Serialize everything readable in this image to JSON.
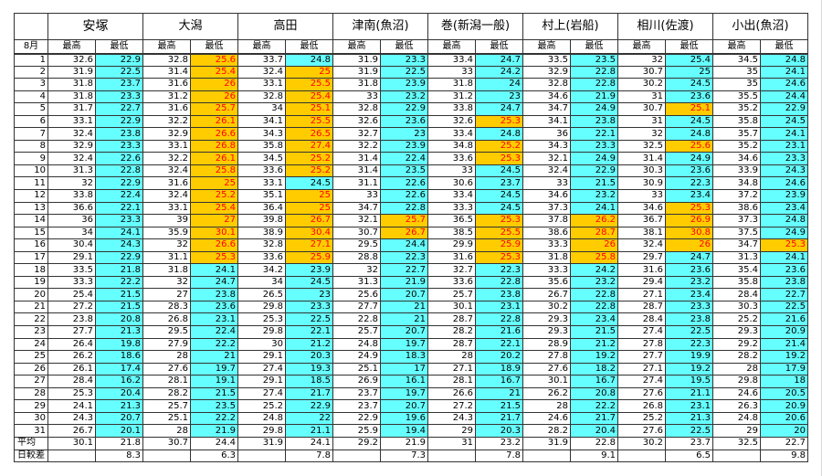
{
  "sheet": {
    "month_label": "8月",
    "sub_headers": {
      "high": "最高",
      "low": "最低"
    },
    "colors": {
      "cyan": "#66ffff",
      "hot_bg": "#ffcc00",
      "hot_text": "#ff0000"
    },
    "stations": [
      {
        "name": "安塚",
        "main": true
      },
      {
        "name": "大潟"
      },
      {
        "name": "高田"
      },
      {
        "name": "津南(魚沼)"
      },
      {
        "name": "巻(新潟一般)"
      },
      {
        "name": "村上(岩船)"
      },
      {
        "name": "相川(佐渡)"
      },
      {
        "name": "小出(魚沼)"
      }
    ],
    "rows": [
      {
        "day": "1",
        "v": [
          "32.6",
          "22.9",
          "32.8",
          "25.6",
          "33.7",
          "24.8",
          "31.9",
          "23.3",
          "33.4",
          "24.7",
          "33.5",
          "23.5",
          "32",
          "25.4",
          "34.5",
          "24.8"
        ],
        "hot": [
          3
        ]
      },
      {
        "day": "2",
        "v": [
          "31.9",
          "22.5",
          "31.4",
          "25.4",
          "32.4",
          "25",
          "31.9",
          "22.5",
          "33",
          "24.2",
          "32.9",
          "22.8",
          "30.7",
          "25",
          "35",
          "24.1"
        ],
        "hot": [
          3,
          5
        ]
      },
      {
        "day": "3",
        "v": [
          "31.8",
          "23.7",
          "31.6",
          "26",
          "33.1",
          "25.5",
          "31.8",
          "23.9",
          "31.8",
          "24",
          "32.8",
          "22.8",
          "30.2",
          "24.5",
          "35",
          "24.6"
        ],
        "hot": [
          3,
          5
        ]
      },
      {
        "day": "4",
        "v": [
          "31.8",
          "23.3",
          "31.2",
          "26",
          "32.8",
          "25.4",
          "33",
          "23.2",
          "31.2",
          "23",
          "34.6",
          "21.9",
          "31",
          "23.6",
          "35.5",
          "24.4"
        ],
        "hot": [
          3,
          5
        ]
      },
      {
        "day": "5",
        "v": [
          "31.7",
          "22.7",
          "31.6",
          "25.7",
          "34",
          "25.1",
          "32.8",
          "22.9",
          "33.8",
          "24.7",
          "34.7",
          "24.9",
          "30.7",
          "25.1",
          "35.2",
          "22.9"
        ],
        "hot": [
          3,
          5,
          13
        ]
      },
      {
        "day": "6",
        "v": [
          "33.1",
          "22.9",
          "32.2",
          "26.1",
          "34.1",
          "25.5",
          "32.6",
          "23.6",
          "32.6",
          "25.3",
          "34.1",
          "23.8",
          "31",
          "24.5",
          "35.8",
          "24.5"
        ],
        "hot": [
          3,
          5,
          9
        ]
      },
      {
        "day": "7",
        "v": [
          "32.4",
          "23.8",
          "32.9",
          "26.6",
          "34.3",
          "26.5",
          "32.7",
          "23",
          "33.4",
          "24.8",
          "36",
          "22.1",
          "32",
          "24.8",
          "35.7",
          "24.1"
        ],
        "hot": [
          3,
          5
        ]
      },
      {
        "day": "8",
        "v": [
          "32.9",
          "23.3",
          "33.1",
          "26.8",
          "35.8",
          "27.4",
          "32.2",
          "23.9",
          "34.8",
          "25.2",
          "34.3",
          "23.3",
          "32.5",
          "25.6",
          "35.2",
          "23.1"
        ],
        "hot": [
          3,
          5,
          9,
          13
        ]
      },
      {
        "day": "9",
        "v": [
          "32.4",
          "22.6",
          "32.2",
          "26.1",
          "34.5",
          "25.2",
          "31.4",
          "22.4",
          "33.6",
          "25.3",
          "32.1",
          "24.9",
          "31.4",
          "24.9",
          "34.6",
          "23.3"
        ],
        "hot": [
          3,
          5,
          9
        ]
      },
      {
        "day": "10",
        "v": [
          "31.3",
          "22.8",
          "32.4",
          "25.8",
          "33.6",
          "25.2",
          "31.4",
          "23.5",
          "33",
          "24.5",
          "32.4",
          "22.9",
          "30.3",
          "23.6",
          "33.9",
          "24.3"
        ],
        "hot": [
          3,
          5
        ]
      },
      {
        "day": "11",
        "v": [
          "32",
          "22.9",
          "31.6",
          "25",
          "33.1",
          "24.5",
          "31.1",
          "22.6",
          "30.6",
          "23.7",
          "33",
          "21.5",
          "30.9",
          "22.3",
          "34.8",
          "24.6"
        ],
        "hot": [
          3
        ]
      },
      {
        "day": "12",
        "v": [
          "33.8",
          "22.4",
          "32.4",
          "25.2",
          "35.1",
          "25",
          "33",
          "22.6",
          "33.4",
          "24.5",
          "34.6",
          "23.2",
          "33",
          "23.4",
          "37.2",
          "23.9"
        ],
        "hot": [
          3,
          5
        ]
      },
      {
        "day": "13",
        "v": [
          "36.6",
          "22.1",
          "33.1",
          "25.4",
          "36.4",
          "25",
          "34.7",
          "22.8",
          "33.3",
          "24.5",
          "37.3",
          "24.1",
          "34.6",
          "25.3",
          "38.6",
          "23.4"
        ],
        "hot": [
          3,
          5,
          13
        ]
      },
      {
        "day": "14",
        "v": [
          "36",
          "23.3",
          "39",
          "27",
          "39.8",
          "26.7",
          "32.1",
          "25.7",
          "36.5",
          "25.3",
          "37.8",
          "26.2",
          "36.7",
          "26.9",
          "37.3",
          "24.8"
        ],
        "hot": [
          3,
          5,
          7,
          9,
          11,
          13
        ]
      },
      {
        "day": "15",
        "v": [
          "34",
          "24.1",
          "35.9",
          "30.1",
          "38.9",
          "30.4",
          "30.7",
          "26.7",
          "38.5",
          "25.5",
          "38.6",
          "28.7",
          "38.1",
          "30.8",
          "37.5",
          "24.9"
        ],
        "hot": [
          3,
          5,
          7,
          9,
          11,
          13
        ]
      },
      {
        "day": "16",
        "v": [
          "30.4",
          "24.3",
          "32",
          "26.6",
          "32.8",
          "27.1",
          "29.5",
          "24.4",
          "29.9",
          "25.9",
          "33.3",
          "26",
          "32.4",
          "26",
          "34.7",
          "25.3"
        ],
        "hot": [
          3,
          5,
          9,
          11,
          13,
          15
        ]
      },
      {
        "day": "17",
        "v": [
          "29.1",
          "22.9",
          "31.1",
          "25.3",
          "33.6",
          "25.9",
          "28.8",
          "22.3",
          "31.6",
          "25.3",
          "31.8",
          "25.8",
          "29.7",
          "24.7",
          "31.3",
          "24.1"
        ],
        "hot": [
          3,
          5,
          9,
          11
        ]
      },
      {
        "day": "18",
        "v": [
          "33.5",
          "21.8",
          "31.8",
          "24.1",
          "34.2",
          "23.9",
          "32",
          "22.7",
          "32.7",
          "22.3",
          "33.3",
          "24.2",
          "31.6",
          "23.6",
          "35.4",
          "23.6"
        ],
        "hot": []
      },
      {
        "day": "19",
        "v": [
          "33.3",
          "22.2",
          "32",
          "24.7",
          "34",
          "24.5",
          "31.3",
          "21.9",
          "33.6",
          "22.8",
          "35.6",
          "23.2",
          "29.4",
          "23.2",
          "35.8",
          "23.8"
        ],
        "hot": []
      },
      {
        "day": "20",
        "v": [
          "25.4",
          "21.5",
          "27",
          "23.8",
          "26.5",
          "23",
          "25.6",
          "20.7",
          "25.7",
          "23.8",
          "26.7",
          "22.8",
          "27.1",
          "23.4",
          "28.4",
          "22.7"
        ],
        "hot": []
      },
      {
        "day": "21",
        "v": [
          "27.2",
          "21.5",
          "28.3",
          "23.6",
          "29.8",
          "23.3",
          "27.7",
          "21",
          "30.1",
          "23.1",
          "30.2",
          "22.8",
          "28.7",
          "23.3",
          "30.3",
          "22.5"
        ],
        "hot": []
      },
      {
        "day": "22",
        "v": [
          "23.8",
          "20.8",
          "26.8",
          "23.1",
          "25.3",
          "22.5",
          "22.8",
          "21",
          "28.7",
          "22.8",
          "29.3",
          "23.4",
          "28.4",
          "23.8",
          "25.2",
          "21.6"
        ],
        "hot": []
      },
      {
        "day": "23",
        "v": [
          "27.7",
          "21.3",
          "29.5",
          "22.4",
          "29.8",
          "22.1",
          "25.7",
          "20.7",
          "28.2",
          "21.6",
          "29.3",
          "21.5",
          "27.4",
          "22.5",
          "29.3",
          "20.9"
        ],
        "hot": []
      },
      {
        "day": "24",
        "v": [
          "26.4",
          "19.8",
          "27.9",
          "22.2",
          "30",
          "21.2",
          "24.8",
          "19.7",
          "28.7",
          "22.1",
          "28.9",
          "21.2",
          "27.8",
          "22.3",
          "29.2",
          "21.4"
        ],
        "hot": []
      },
      {
        "day": "25",
        "v": [
          "26.2",
          "18.6",
          "28",
          "21",
          "29.1",
          "20.3",
          "24.9",
          "18.3",
          "28",
          "20.2",
          "27.8",
          "19.2",
          "27.7",
          "19.9",
          "28.2",
          "19.2"
        ],
        "hot": []
      },
      {
        "day": "26",
        "v": [
          "26.1",
          "17.4",
          "27.6",
          "19.7",
          "27.4",
          "19.3",
          "25.1",
          "17",
          "27.1",
          "18.9",
          "27.6",
          "18.2",
          "27.1",
          "19.2",
          "28",
          "17.9"
        ],
        "hot": []
      },
      {
        "day": "27",
        "v": [
          "28.4",
          "16.2",
          "28.1",
          "19.1",
          "29.1",
          "18.5",
          "26.9",
          "16.1",
          "28.1",
          "16.7",
          "30.1",
          "16.7",
          "27.4",
          "19.5",
          "29.8",
          "18"
        ],
        "hot": []
      },
      {
        "day": "28",
        "v": [
          "25.3",
          "20.4",
          "28.2",
          "21.5",
          "27.4",
          "21.7",
          "23.7",
          "19.7",
          "26.6",
          "21",
          "26.2",
          "20.8",
          "27.6",
          "21.1",
          "24.6",
          "20.5"
        ],
        "hot": []
      },
      {
        "day": "29",
        "v": [
          "24.1",
          "21.3",
          "25.7",
          "23.5",
          "25.2",
          "22.9",
          "23.7",
          "20.7",
          "27.2",
          "21.5",
          "28",
          "22.2",
          "26.8",
          "23.1",
          "26.3",
          "20.9"
        ],
        "hot": []
      },
      {
        "day": "30",
        "v": [
          "24.3",
          "20.7",
          "25.1",
          "22.2",
          "24.8",
          "22",
          "22.9",
          "19.6",
          "24.3",
          "21.7",
          "24.6",
          "21.7",
          "25.2",
          "21.3",
          "24.8",
          "20.6"
        ],
        "hot": []
      },
      {
        "day": "31",
        "v": [
          "26.7",
          "20.1",
          "28",
          "21.9",
          "29.8",
          "21.1",
          "25.9",
          "19.4",
          "29",
          "20.3",
          "28.2",
          "20.4",
          "27.6",
          "22.5",
          "29",
          "20"
        ],
        "hot": []
      }
    ],
    "average": {
      "label": "平均",
      "v": [
        "30.1",
        "21.8",
        "30.7",
        "24.4",
        "31.9",
        "24.1",
        "29.2",
        "21.9",
        "31",
        "23.2",
        "31.9",
        "22.8",
        "30.2",
        "23.7",
        "32.5",
        "22.7"
      ]
    },
    "daily_range": {
      "label": "日較差",
      "v": [
        "8.3",
        "6.3",
        "7.8",
        "7.3",
        "7.8",
        "9.1",
        "6.5",
        "9.8"
      ]
    }
  }
}
